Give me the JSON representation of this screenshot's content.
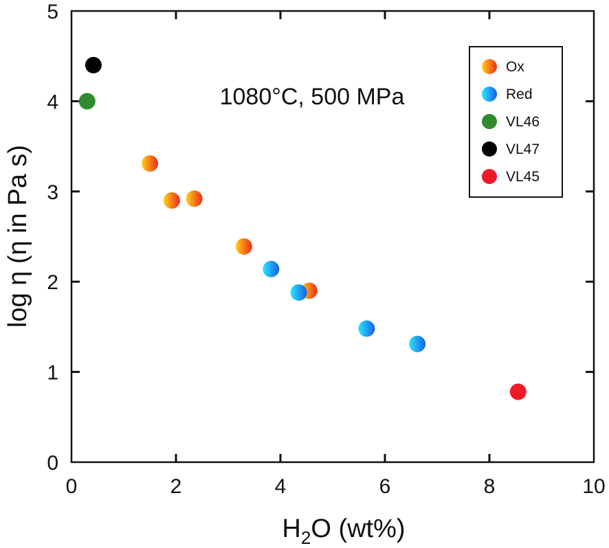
{
  "chart_data": {
    "type": "scatter",
    "title": "",
    "annotation": "1080°C, 500 MPa",
    "xlabel": {
      "base": "H",
      "sub": "2",
      "rest": "O (wt%)"
    },
    "ylabel": "log η (η in Pa s)",
    "xlim": [
      0,
      10
    ],
    "ylim": [
      0,
      5
    ],
    "xticks": [
      0,
      2,
      4,
      6,
      8,
      10
    ],
    "yticks": [
      0,
      1,
      2,
      3,
      4,
      5
    ],
    "grid": false,
    "legend_position": "top-right",
    "series": [
      {
        "name": "Ox",
        "color_start": "#ffd21a",
        "color_end": "#ee2a1a",
        "points": [
          [
            1.5,
            3.31
          ],
          [
            1.92,
            2.9
          ],
          [
            2.35,
            2.92
          ],
          [
            3.3,
            2.39
          ],
          [
            4.55,
            1.9
          ]
        ]
      },
      {
        "name": "Red",
        "color_start": "#28e6ff",
        "color_end": "#1a5fe6",
        "points": [
          [
            3.82,
            2.14
          ],
          [
            4.35,
            1.88
          ],
          [
            5.65,
            1.48
          ],
          [
            6.62,
            1.31
          ]
        ]
      },
      {
        "name": "VL46",
        "color": "#2e8b2e",
        "points": [
          [
            0.3,
            4.0
          ]
        ]
      },
      {
        "name": "VL47",
        "color": "#000000",
        "points": [
          [
            0.42,
            4.4
          ]
        ]
      },
      {
        "name": "VL45",
        "color": "#ee1a2a",
        "points": [
          [
            8.55,
            0.78
          ]
        ]
      }
    ]
  }
}
